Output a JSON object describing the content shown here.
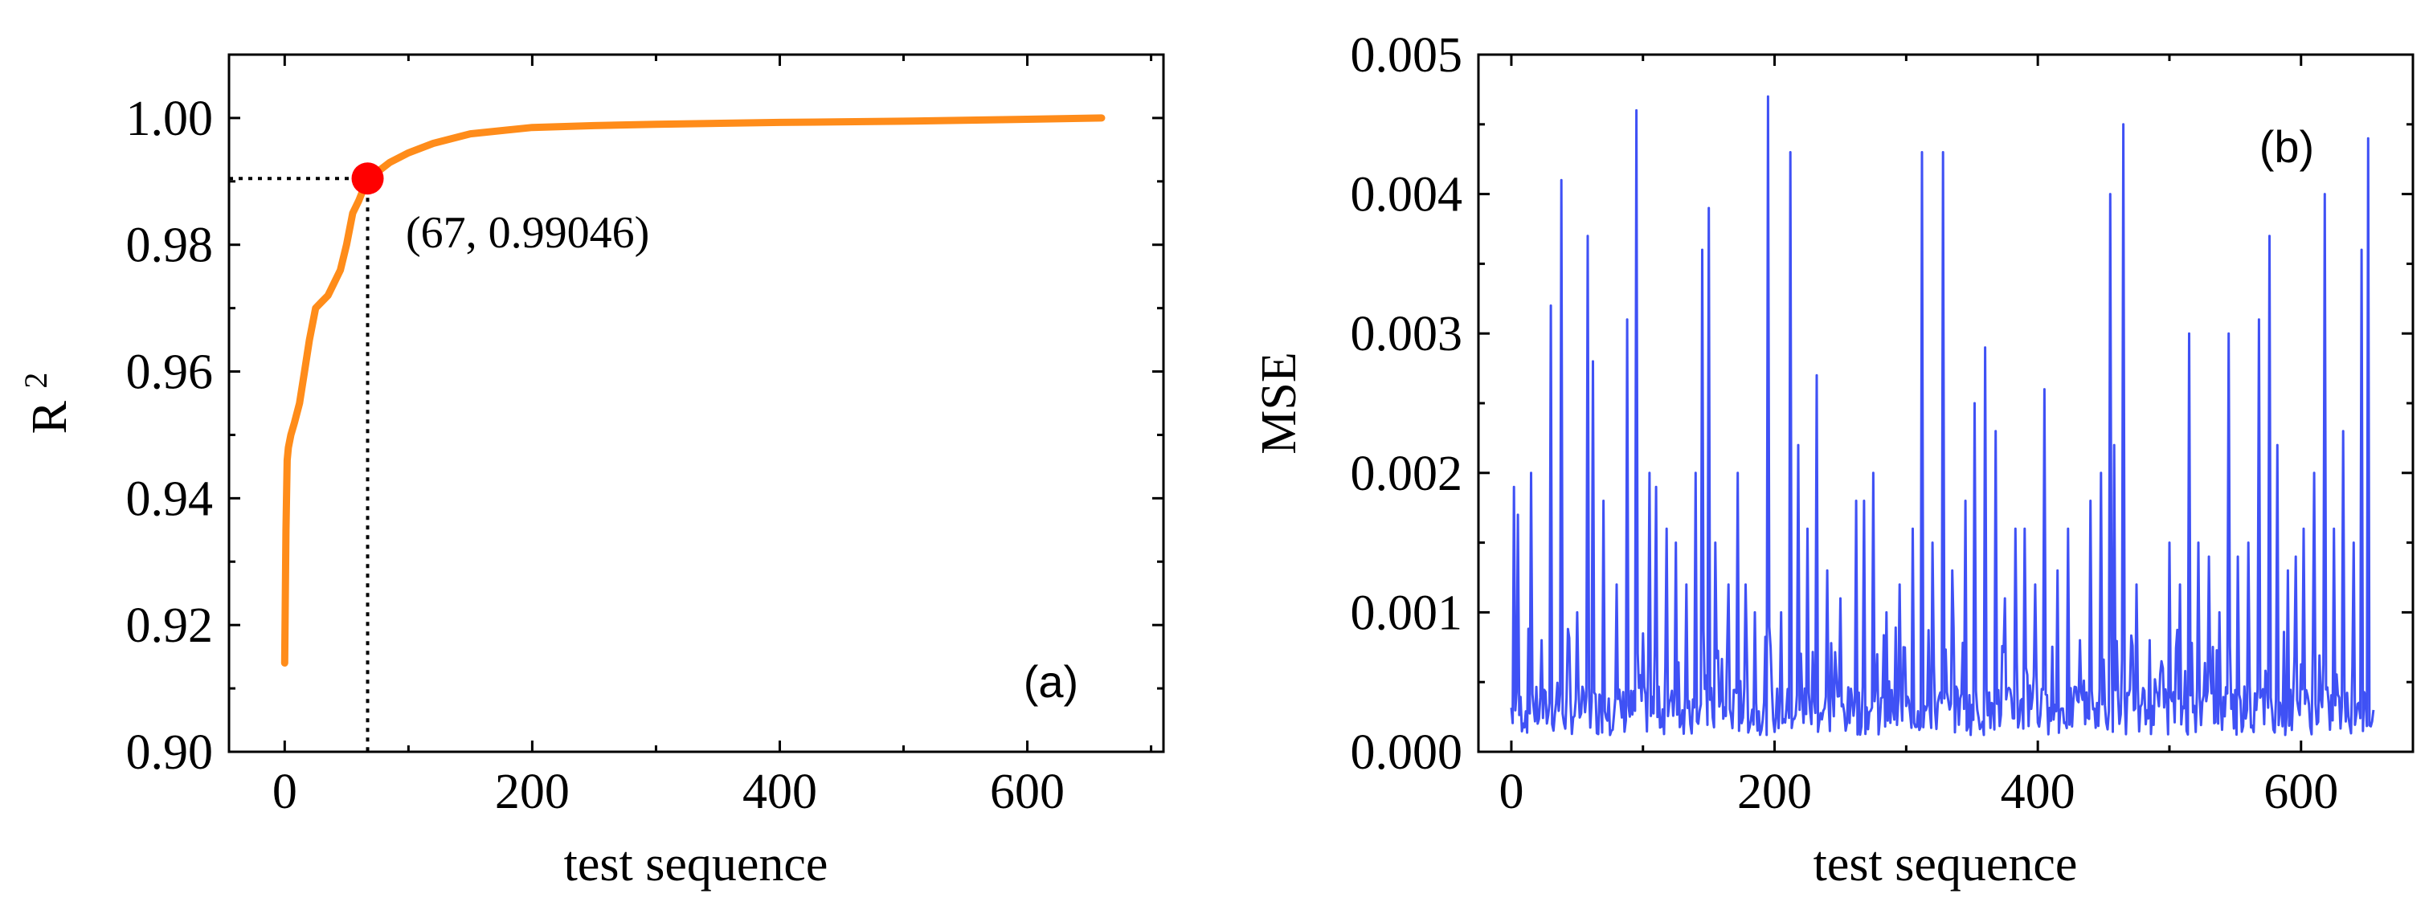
{
  "chart_data": [
    {
      "type": "line",
      "panel_label": "(a)",
      "xlabel": "test sequence",
      "ylabel": "R",
      "ylabel_sup": "2",
      "xlim": [
        -45,
        710
      ],
      "ylim": [
        0.9,
        1.01
      ],
      "xticks": [
        0,
        200,
        400,
        600
      ],
      "xtick_labels": [
        "0",
        "200",
        "400",
        "600"
      ],
      "yticks": [
        0.9,
        0.92,
        0.94,
        0.96,
        0.98,
        1.0
      ],
      "ytick_labels": [
        "0.90",
        "0.92",
        "0.94",
        "0.96",
        "0.98",
        "1.00"
      ],
      "line_color": "#FF8C1A",
      "marker_color": "#FF0000",
      "highlight": {
        "x": 67,
        "y": 0.99046,
        "label": "(67, 0.99046)"
      },
      "series": [
        {
          "name": "R2",
          "x": [
            0,
            1,
            2,
            3,
            5,
            8,
            12,
            16,
            20,
            25,
            30,
            35,
            40,
            45,
            50,
            55,
            60,
            67,
            75,
            85,
            100,
            120,
            150,
            200,
            250,
            300,
            400,
            500,
            600,
            660
          ],
          "y": [
            0.914,
            0.935,
            0.946,
            0.948,
            0.95,
            0.952,
            0.955,
            0.96,
            0.965,
            0.97,
            0.971,
            0.972,
            0.974,
            0.976,
            0.98,
            0.985,
            0.987,
            0.99046,
            0.9915,
            0.993,
            0.9945,
            0.996,
            0.9975,
            0.9985,
            0.9988,
            0.999,
            0.9993,
            0.9995,
            0.9998,
            1.0
          ]
        }
      ]
    },
    {
      "type": "line",
      "panel_label": "(b)",
      "xlabel": "test sequence",
      "ylabel": "MSE",
      "xlim": [
        -25,
        685
      ],
      "ylim": [
        0.0,
        0.005
      ],
      "xticks": [
        0,
        200,
        400,
        600
      ],
      "xtick_labels": [
        "0",
        "200",
        "400",
        "600"
      ],
      "yticks": [
        0.0,
        0.001,
        0.002,
        0.003,
        0.004,
        0.005
      ],
      "ytick_labels": [
        "0.000",
        "0.001",
        "0.002",
        "0.003",
        "0.004",
        "0.005"
      ],
      "line_color": "#3F51F5",
      "series": [
        {
          "name": "MSE",
          "peaks": [
            [
              2,
              0.0019
            ],
            [
              5,
              0.0017
            ],
            [
              15,
              0.002
            ],
            [
              23,
              0.0008
            ],
            [
              30,
              0.0032
            ],
            [
              38,
              0.0041
            ],
            [
              50,
              0.001
            ],
            [
              58,
              0.0037
            ],
            [
              62,
              0.0028
            ],
            [
              70,
              0.0018
            ],
            [
              80,
              0.0012
            ],
            [
              88,
              0.0031
            ],
            [
              95,
              0.0046
            ],
            [
              105,
              0.002
            ],
            [
              110,
              0.0019
            ],
            [
              118,
              0.0016
            ],
            [
              125,
              0.0015
            ],
            [
              133,
              0.0012
            ],
            [
              140,
              0.002
            ],
            [
              145,
              0.0036
            ],
            [
              150,
              0.0039
            ],
            [
              155,
              0.0015
            ],
            [
              165,
              0.0012
            ],
            [
              172,
              0.002
            ],
            [
              178,
              0.0012
            ],
            [
              185,
              0.001
            ],
            [
              195,
              0.0047
            ],
            [
              205,
              0.001
            ],
            [
              212,
              0.0043
            ],
            [
              218,
              0.0022
            ],
            [
              225,
              0.0016
            ],
            [
              232,
              0.0027
            ],
            [
              240,
              0.0013
            ],
            [
              250,
              0.0011
            ],
            [
              262,
              0.0018
            ],
            [
              268,
              0.0018
            ],
            [
              275,
              0.002
            ],
            [
              285,
              0.001
            ],
            [
              295,
              0.0012
            ],
            [
              305,
              0.0016
            ],
            [
              312,
              0.0043
            ],
            [
              320,
              0.0015
            ],
            [
              328,
              0.0043
            ],
            [
              335,
              0.0013
            ],
            [
              345,
              0.0018
            ],
            [
              352,
              0.0025
            ],
            [
              360,
              0.0029
            ],
            [
              368,
              0.0023
            ],
            [
              375,
              0.0011
            ],
            [
              383,
              0.0016
            ],
            [
              390,
              0.0016
            ],
            [
              398,
              0.0012
            ],
            [
              405,
              0.0026
            ],
            [
              415,
              0.0013
            ],
            [
              423,
              0.0016
            ],
            [
              432,
              0.0008
            ],
            [
              440,
              0.0018
            ],
            [
              448,
              0.002
            ],
            [
              455,
              0.004
            ],
            [
              458,
              0.0022
            ],
            [
              465,
              0.0045
            ],
            [
              475,
              0.0012
            ],
            [
              485,
              0.0008
            ],
            [
              495,
              0.0006
            ],
            [
              500,
              0.0015
            ],
            [
              508,
              0.0012
            ],
            [
              515,
              0.003
            ],
            [
              522,
              0.0015
            ],
            [
              530,
              0.0014
            ],
            [
              538,
              0.001
            ],
            [
              545,
              0.003
            ],
            [
              552,
              0.0014
            ],
            [
              560,
              0.0015
            ],
            [
              568,
              0.0031
            ],
            [
              576,
              0.0037
            ],
            [
              582,
              0.0022
            ],
            [
              590,
              0.0013
            ],
            [
              596,
              0.0014
            ],
            [
              602,
              0.0016
            ],
            [
              610,
              0.002
            ],
            [
              618,
              0.004
            ],
            [
              625,
              0.0016
            ],
            [
              632,
              0.0023
            ],
            [
              640,
              0.0015
            ],
            [
              646,
              0.0036
            ],
            [
              651,
              0.0044
            ],
            [
              655,
              0.0003
            ]
          ]
        }
      ]
    }
  ]
}
